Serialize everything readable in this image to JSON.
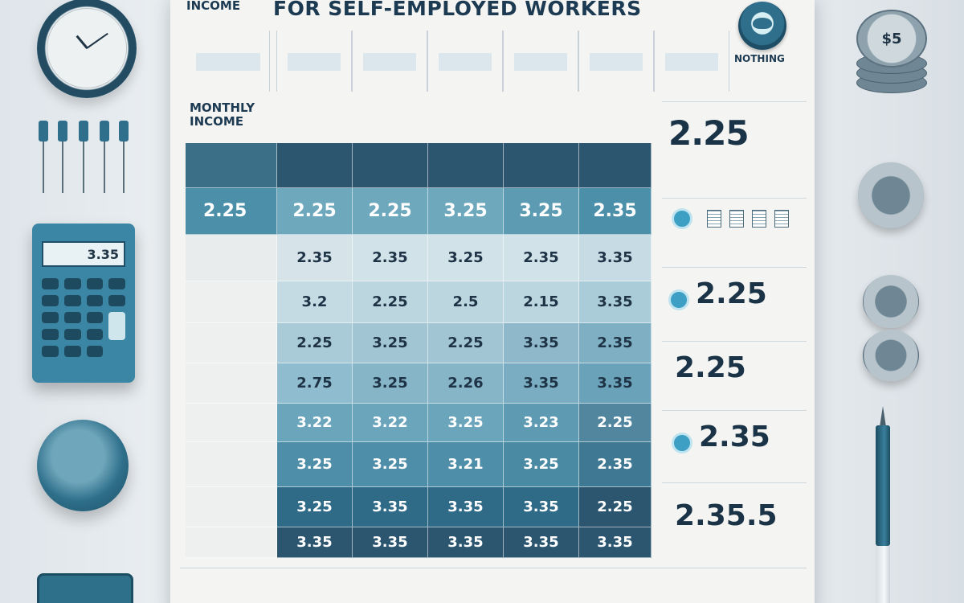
{
  "poster": {
    "logo_line1": "INCOME",
    "logo_line2": "",
    "title": "FOR SELF-EMPLOYED WORKERS"
  },
  "header_row": {
    "cells": [
      "",
      "",
      "",
      "",
      "",
      ""
    ],
    "nothing_label": "NOTHING",
    "nothing_caption": ""
  },
  "column_heads": [
    "MONTHLY INCOME",
    "",
    "",
    "",
    "",
    ""
  ],
  "table": {
    "header_cells": [
      "",
      "",
      "",
      "",
      "",
      ""
    ],
    "highlight_row": [
      "2.25",
      "2.25",
      "2.25",
      "3.25",
      "3.25",
      "2.35"
    ],
    "rows": [
      [
        "",
        "2.35",
        "2.35",
        "3.25",
        "2.35",
        "3.35"
      ],
      [
        "",
        "3.2",
        "2.25",
        "2.5",
        "2.15",
        "3.35"
      ],
      [
        "",
        "2.25",
        "3.25",
        "2.25",
        "3.35",
        "2.35"
      ],
      [
        "",
        "2.75",
        "3.25",
        "2.26",
        "3.35",
        "3.35"
      ],
      [
        "",
        "3.22",
        "3.22",
        "3.25",
        "3.23",
        "2.25"
      ],
      [
        "",
        "3.25",
        "3.25",
        "3.21",
        "3.25",
        "2.35"
      ],
      [
        "",
        "3.25",
        "3.35",
        "3.35",
        "3.35",
        "2.25"
      ],
      [
        "",
        "3.35",
        "3.35",
        "3.35",
        "3.35",
        "3.35"
      ]
    ]
  },
  "right_column": {
    "values": [
      "2.25",
      "2.25",
      "2.25",
      "2.35",
      "2.35.5"
    ],
    "captions": [
      "",
      "",
      "",
      "",
      "",
      ""
    ]
  },
  "desk": {
    "calculator_display": "3.35",
    "coin_label": "$5"
  },
  "colors": {
    "navy": "#2c5670",
    "teal": "#4b8fa9",
    "light_teal": "#9fc8d6",
    "pale": "#d4e6ec",
    "paper": "#f4f4f2"
  }
}
